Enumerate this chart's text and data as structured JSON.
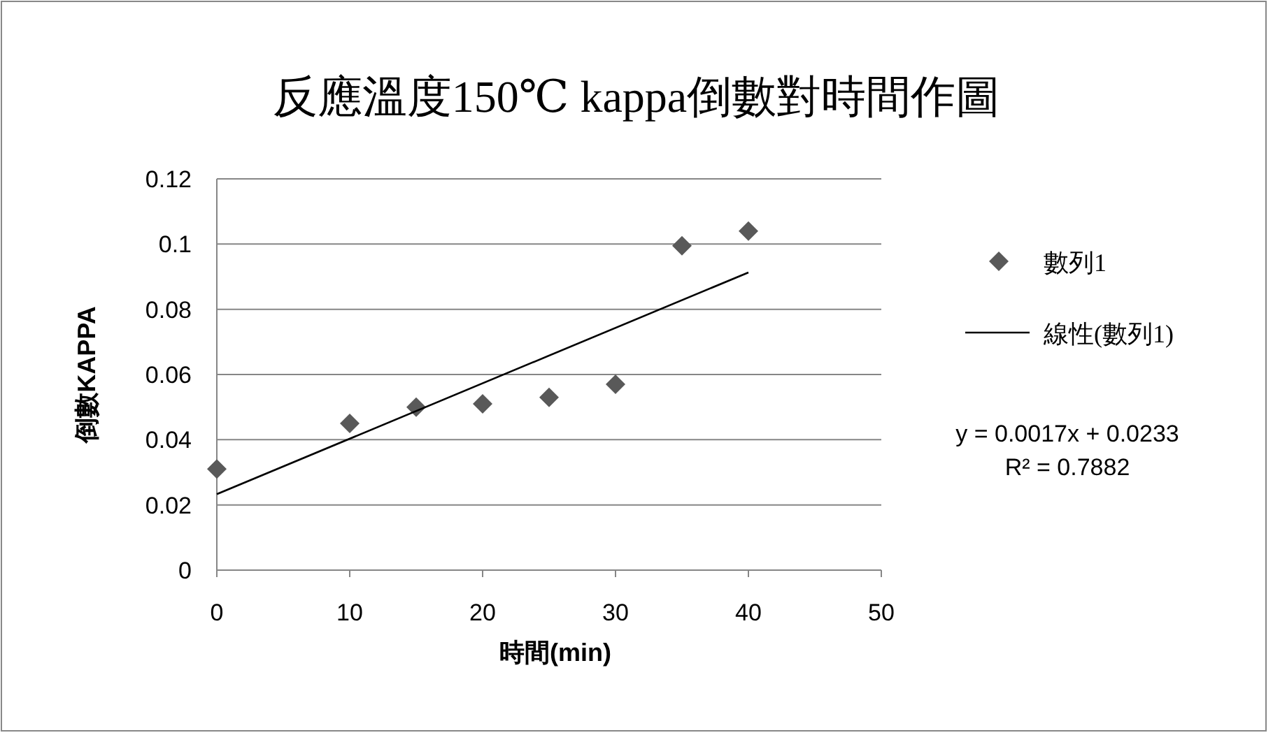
{
  "chart_data": {
    "type": "scatter",
    "title": "反應溫度150℃ kappa倒數對時間作圖",
    "xlabel": "時間(min)",
    "ylabel": "倒數KAPPA",
    "xlim": [
      0,
      50
    ],
    "xticks": [
      0,
      10,
      20,
      30,
      40,
      50
    ],
    "ylim": [
      0,
      0.12
    ],
    "yticks": [
      0,
      0.02,
      0.04,
      0.06,
      0.08,
      0.1,
      0.12
    ],
    "grid": "y",
    "legend": "right",
    "series": [
      {
        "name": "數列1",
        "marker": "diamond",
        "color": "#595959",
        "x": [
          0,
          10,
          15,
          20,
          25,
          30,
          35,
          40
        ],
        "values": [
          0.031,
          0.045,
          0.05,
          0.051,
          0.053,
          0.057,
          0.0995,
          0.104
        ]
      },
      {
        "name": "線性(數列1)",
        "type": "line",
        "marker": "none",
        "color": "#000000",
        "x": [
          0,
          40
        ],
        "values": [
          0.0233,
          0.0913
        ]
      }
    ],
    "annotations": [
      "y = 0.0017x + 0.0233",
      "R² = 0.7882"
    ]
  }
}
